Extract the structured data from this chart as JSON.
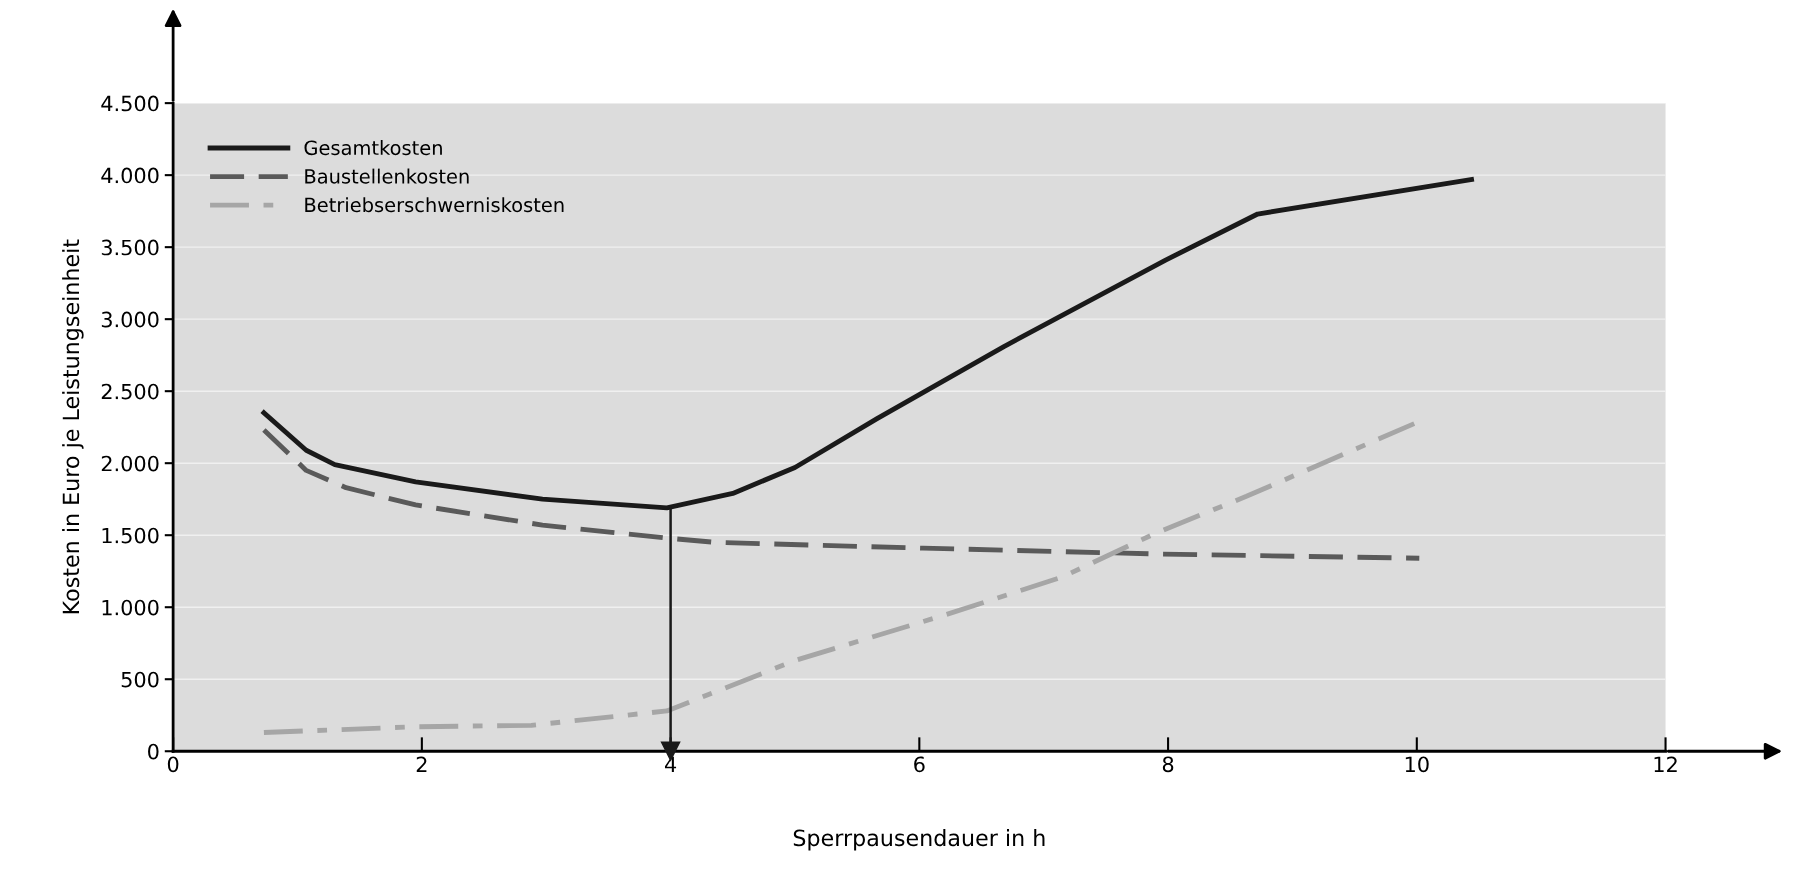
{
  "chart_data": {
    "type": "line",
    "xlabel": "Sperrpausendauer in h",
    "ylabel": "Kosten in Euro je Leistungseinheit",
    "xlim": [
      0,
      12
    ],
    "ylim": [
      0,
      4500
    ],
    "xticks": [
      0,
      2,
      4,
      6,
      8,
      10,
      12
    ],
    "yticks": [
      {
        "value": 0,
        "label": "0"
      },
      {
        "value": 500,
        "label": "500"
      },
      {
        "value": 1000,
        "label": "1.000"
      },
      {
        "value": 1500,
        "label": "1.500"
      },
      {
        "value": 2000,
        "label": "2.000"
      },
      {
        "value": 2500,
        "label": "2.500"
      },
      {
        "value": 3000,
        "label": "3.000"
      },
      {
        "value": 3500,
        "label": "3.500"
      },
      {
        "value": 4000,
        "label": "4.000"
      },
      {
        "value": 4500,
        "label": "4.500"
      }
    ],
    "grid": "y",
    "legend": "top left",
    "marker": "none",
    "series": [
      {
        "name": "Gesamtkosten",
        "color": "#1a1a1a",
        "line_style": "solid",
        "x": [
          0.73,
          1.07,
          1.3,
          1.95,
          2.97,
          3.97,
          4.5,
          5.0,
          5.66,
          6.68,
          7.98,
          8.72,
          10.44
        ],
        "values": [
          2350,
          2090,
          1990,
          1870,
          1750,
          1690,
          1790,
          1970,
          2310,
          2810,
          3410,
          3730,
          3970
        ]
      },
      {
        "name": "Baustellenkosten",
        "color": "#5a5a5a",
        "line_style": "dashed",
        "x": [
          0.73,
          1.07,
          1.39,
          1.95,
          2.97,
          3.97,
          4.36,
          6.03,
          7.89,
          10.02
        ],
        "values": [
          2230,
          1950,
          1830,
          1710,
          1570,
          1480,
          1450,
          1410,
          1370,
          1340
        ]
      },
      {
        "name": "Betriebserschwerniskosten",
        "color": "#a6a6a6",
        "line_style": "dashdot",
        "x": [
          0.73,
          1.95,
          2.88,
          3.97,
          5.0,
          6.22,
          7.15,
          7.89,
          8.63,
          10.02
        ],
        "values": [
          130,
          170,
          180,
          280,
          630,
          950,
          1210,
          1510,
          1770,
          2290
        ]
      }
    ],
    "ref_lines": [
      {
        "axis": "x",
        "value": 4,
        "color": "#1a1a1a"
      }
    ]
  }
}
